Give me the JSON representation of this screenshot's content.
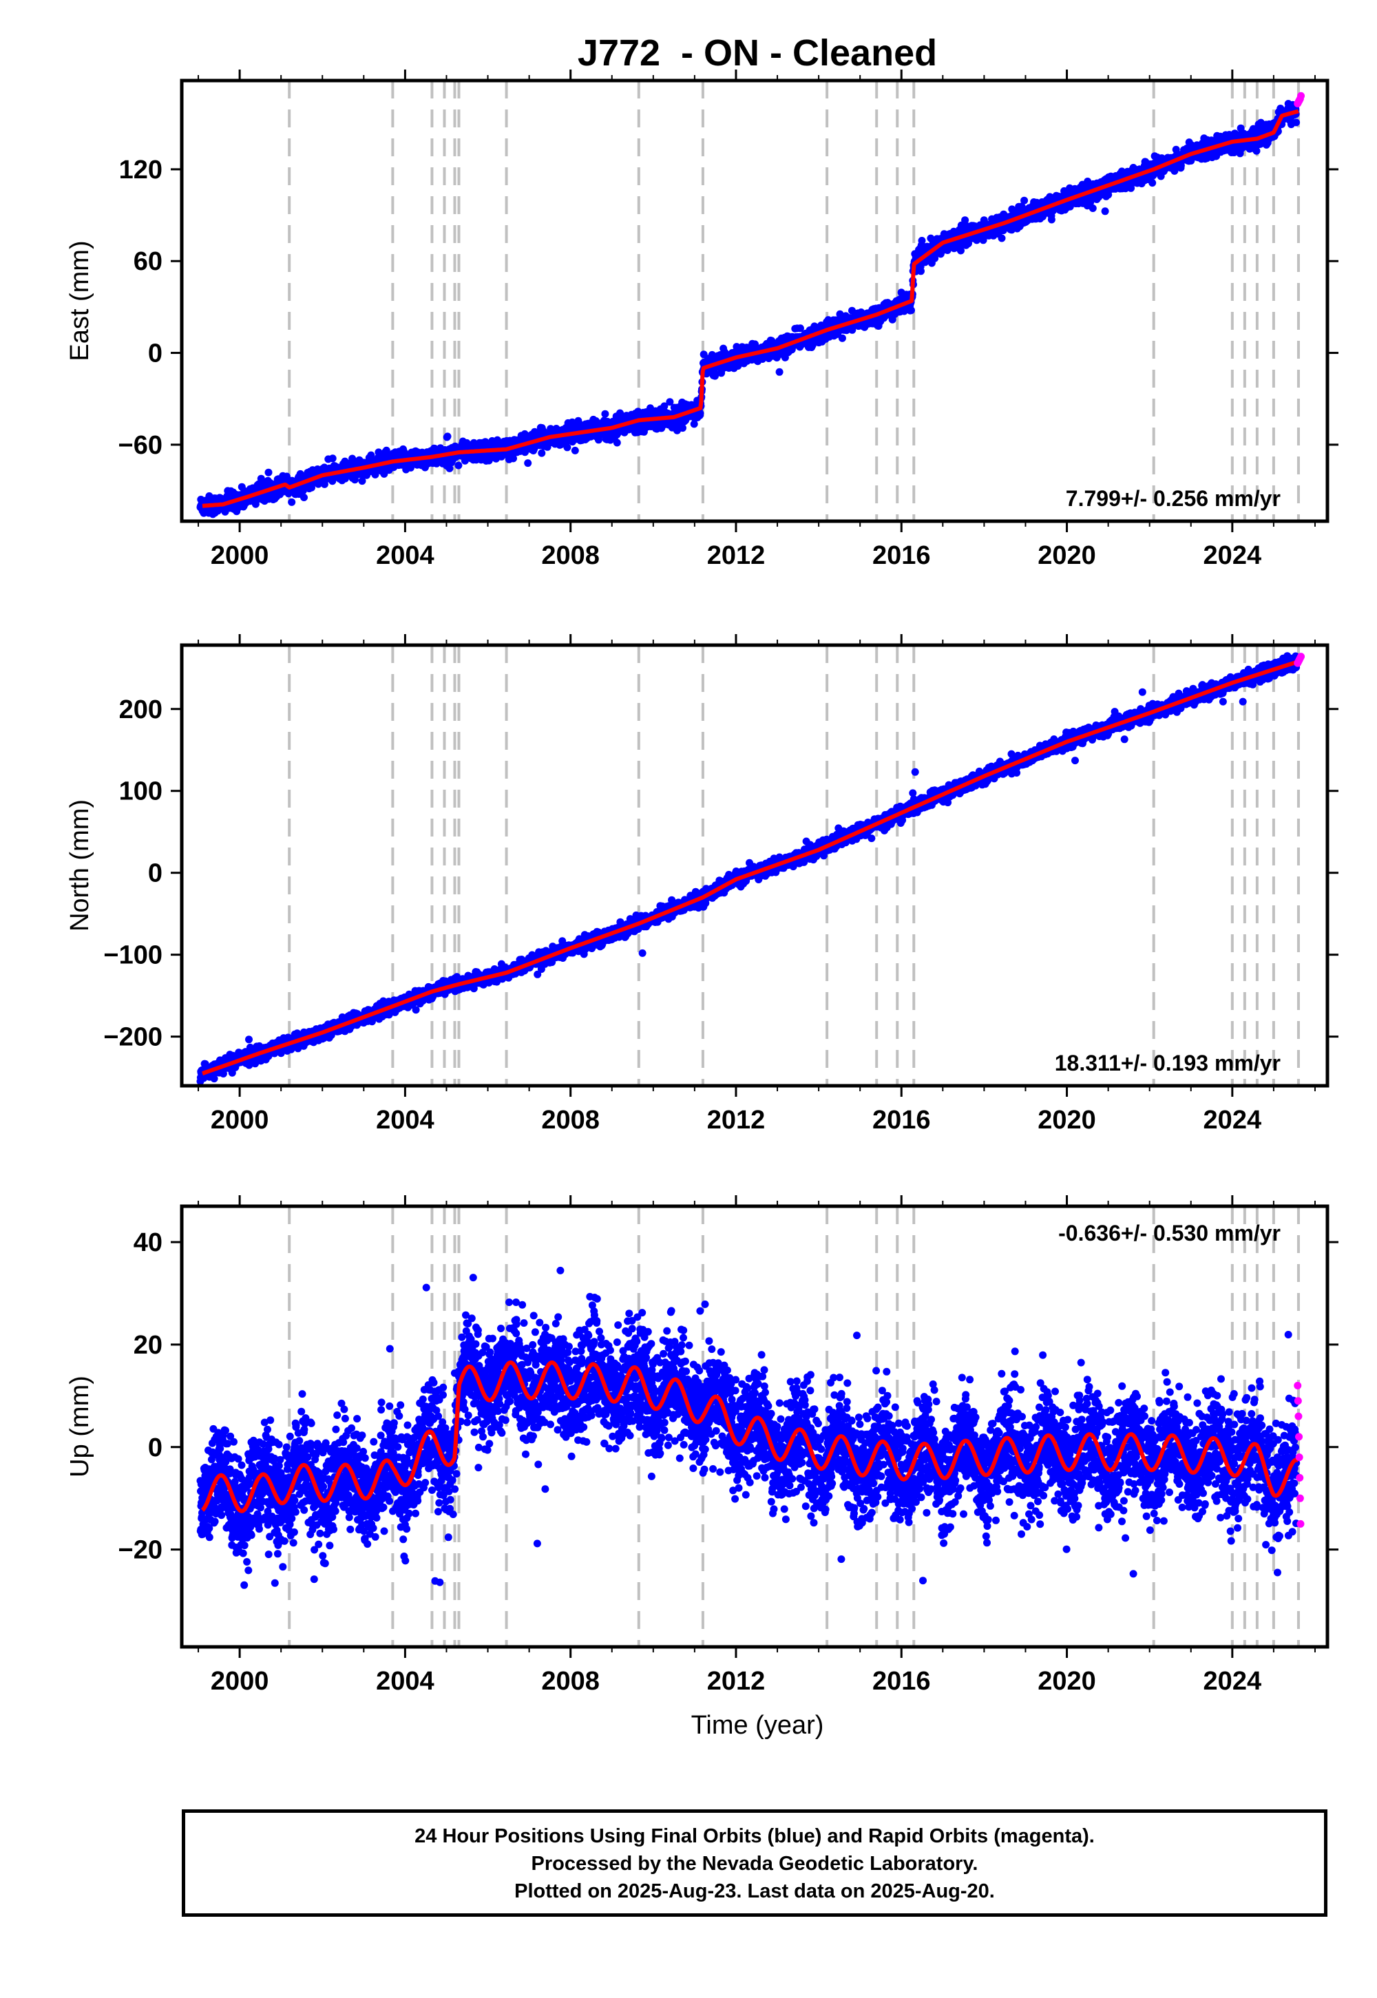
{
  "title": "J772  - ON - Cleaned",
  "colors": {
    "final": "#0000ff",
    "rapid": "#ff00ff",
    "model": "#ff0000",
    "steps": "#c0c0c0"
  },
  "xlabel": "Time (year)",
  "step_years": [
    2001.2,
    2003.7,
    2004.65,
    2004.95,
    2005.2,
    2005.3,
    2006.45,
    2009.65,
    2011.2,
    2014.2,
    2015.4,
    2015.9,
    2016.3,
    2022.1,
    2024.0,
    2024.3,
    2024.6,
    2025.0,
    2025.6
  ],
  "chart_data": [
    {
      "type": "scatter",
      "name": "east",
      "ylabel": "East (mm)",
      "xlim": [
        1998.6,
        2026.3
      ],
      "ylim": [
        -110,
        178
      ],
      "xticks": [
        2000,
        2004,
        2008,
        2012,
        2016,
        2020,
        2024
      ],
      "yticks": [
        -60,
        0,
        60,
        120
      ],
      "rate": "7.799+/- 0.256 mm/yr",
      "rate_pos": "bottom-right",
      "scatter_sd": 3,
      "model": {
        "x": [
          1999.1,
          1999.6,
          2000.2,
          2001.1,
          2001.2,
          2002.0,
          2003.0,
          2003.7,
          2004.65,
          2005.3,
          2006.45,
          2007.5,
          2009.0,
          2009.65,
          2010.5,
          2011.15,
          2011.2,
          2012.0,
          2013.0,
          2014.2,
          2015.4,
          2016.25,
          2016.3,
          2017.0,
          2018.5,
          2020.0,
          2022.1,
          2023.0,
          2024.0,
          2024.6,
          2025.0,
          2025.2,
          2025.6
        ],
        "y": [
          -100,
          -99,
          -94,
          -86,
          -88,
          -80,
          -75,
          -71,
          -68,
          -65,
          -63,
          -55,
          -49,
          -44,
          -42,
          -36,
          -10,
          -3,
          3,
          15,
          25,
          34,
          58,
          72,
          85,
          100,
          120,
          130,
          138,
          140,
          144,
          155,
          158
        ]
      },
      "rapid": {
        "x": [
          2025.58,
          2025.6,
          2025.62,
          2025.64,
          2025.66
        ],
        "y": [
          163,
          164,
          165,
          166,
          168
        ]
      }
    },
    {
      "type": "scatter",
      "name": "north",
      "ylabel": "North (mm)",
      "xlim": [
        1998.6,
        2026.3
      ],
      "ylim": [
        -260,
        278
      ],
      "xticks": [
        2000,
        2004,
        2008,
        2012,
        2016,
        2020,
        2024
      ],
      "yticks": [
        -200,
        -100,
        0,
        100,
        200
      ],
      "rate": "18.311+/- 0.193 mm/yr",
      "rate_pos": "bottom-right",
      "scatter_sd": 4,
      "model": {
        "x": [
          1999.1,
          2000.5,
          2002.0,
          2003.7,
          2004.65,
          2005.3,
          2006.45,
          2008.0,
          2009.65,
          2011.2,
          2012.0,
          2014.0,
          2016.3,
          2018.0,
          2020.0,
          2022.0,
          2024.0,
          2025.6
        ],
        "y": [
          -245,
          -220,
          -195,
          -163,
          -145,
          -136,
          -122,
          -92,
          -62,
          -30,
          -8,
          28,
          80,
          118,
          160,
          195,
          232,
          258
        ]
      },
      "rapid": {
        "x": [
          2025.58,
          2025.6,
          2025.62,
          2025.64,
          2025.66
        ],
        "y": [
          256,
          258,
          260,
          262,
          264
        ]
      }
    },
    {
      "type": "scatter",
      "name": "up",
      "ylabel": "Up (mm)",
      "xlim": [
        1998.6,
        2026.3
      ],
      "ylim": [
        -39,
        47
      ],
      "xticks": [
        2000,
        2004,
        2008,
        2012,
        2016,
        2020,
        2024
      ],
      "yticks": [
        -20,
        0,
        20,
        40
      ],
      "rate": "-0.636+/- 0.530 mm/yr",
      "rate_pos": "top-right",
      "scatter_sd": 5,
      "seasonal_amp": 3.5,
      "model": {
        "x": [
          1999.1,
          2000.5,
          2001.2,
          2002.5,
          2003.7,
          2004.65,
          2005.2,
          2005.3,
          2006.5,
          2008.0,
          2009.65,
          2011.2,
          2011.8,
          2012.6,
          2013.5,
          2015.0,
          2016.3,
          2018.0,
          2020.0,
          2022.1,
          2024.0,
          2024.6,
          2025.0,
          2025.6
        ],
        "y": [
          -9,
          -9,
          -7,
          -7,
          -6,
          0,
          0,
          12,
          13,
          13,
          12,
          8,
          5,
          2,
          0,
          -2,
          -3,
          -2,
          -1,
          -1,
          -2,
          -3,
          -6,
          -6
        ]
      },
      "rapid": {
        "x": [
          2025.58,
          2025.59,
          2025.6,
          2025.61,
          2025.62,
          2025.63,
          2025.64,
          2025.65
        ],
        "y": [
          12,
          9,
          6,
          2,
          -2,
          -6,
          -10,
          -15
        ]
      }
    }
  ],
  "footer": {
    "line1": "24 Hour Positions Using Final Orbits (blue) and Rapid Orbits (magenta).",
    "line2": "Processed by the Nevada Geodetic Laboratory.",
    "line3": "Plotted on 2025-Aug-23. Last data on 2025-Aug-20."
  }
}
